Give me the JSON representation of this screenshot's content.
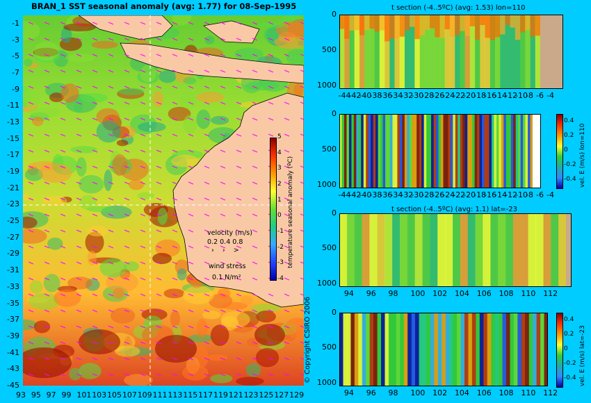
{
  "chart_data": [
    {
      "type": "heatmap",
      "title": "BRAN_1  SST seasonal anomaly (avg: 1.77) for 08-Sep-1995",
      "x_ticks": [
        "93",
        "95",
        "97",
        "99",
        "101",
        "103",
        "105",
        "107",
        "109",
        "111",
        "113",
        "115",
        "117",
        "119",
        "121",
        "123",
        "125",
        "127",
        "129"
      ],
      "y_ticks": [
        "-1",
        "-3",
        "-5",
        "-7",
        "-9",
        "-11",
        "-13",
        "-15",
        "-17",
        "-19",
        "-21",
        "-23",
        "-25",
        "-27",
        "-29",
        "-31",
        "-33",
        "-35",
        "-37",
        "-39",
        "-41",
        "-43",
        "-45"
      ],
      "xlim": [
        93,
        130
      ],
      "ylim": [
        -45,
        0
      ],
      "colorbar": {
        "label": "temperature seasonal anomaly (ºC)",
        "ticks": [
          "5",
          "4",
          "3",
          "2",
          "1",
          "0",
          "-1",
          "-2",
          "-3",
          "-4"
        ],
        "range": [
          -4,
          5
        ]
      },
      "legend": {
        "velocity_label": "velocity (m/s)",
        "velocity_scale": "0.2 0.4 0.8",
        "wind_label": "wind stress",
        "wind_scale": "0.1 N/m²"
      },
      "crosshair": {
        "lon": 110,
        "lat": -23
      }
    },
    {
      "type": "heatmap",
      "title": "t section (-4..5ºC) (avg: 1.53) lon=110",
      "x_ticks": [
        "-44",
        "-42",
        "-40",
        "-38",
        "-36",
        "-34",
        "-32",
        "-30",
        "-28",
        "-26",
        "-24",
        "-22",
        "-20",
        "-18",
        "-16",
        "-14",
        "-12",
        "-10",
        "-8",
        "-6",
        "-4"
      ],
      "y_ticks": [
        "0",
        "500",
        "1000"
      ],
      "xlim": [
        -45,
        -2
      ],
      "ylim": [
        1050,
        0
      ]
    },
    {
      "type": "heatmap",
      "title": "",
      "x_ticks": [
        "-44",
        "-42",
        "-40",
        "-38",
        "-36",
        "-34",
        "-32",
        "-30",
        "-28",
        "-26",
        "-24",
        "-22",
        "-20",
        "-18",
        "-16",
        "-14",
        "-12",
        "-10",
        "-8",
        "-6",
        "-4"
      ],
      "y_ticks": [
        "0",
        "500",
        "1000"
      ],
      "xlim": [
        -45,
        -2
      ],
      "ylim": [
        1050,
        0
      ],
      "colorbar": {
        "label": "vel. E (m/s) lon=110",
        "ticks": [
          "0.4",
          "0.2",
          "0",
          "-0.2",
          "-0.4"
        ],
        "range": [
          -0.5,
          0.5
        ]
      }
    },
    {
      "type": "heatmap",
      "title": "t section (-4..5ºC) (avg: 1.1) lat=-23",
      "x_ticks": [
        "94",
        "96",
        "98",
        "100",
        "102",
        "104",
        "106",
        "108",
        "110",
        "112"
      ],
      "y_ticks": [
        "0",
        "500",
        "1000"
      ],
      "xlim": [
        93,
        114
      ],
      "ylim": [
        1050,
        0
      ]
    },
    {
      "type": "heatmap",
      "title": "",
      "x_ticks": [
        "94",
        "96",
        "98",
        "100",
        "102",
        "104",
        "106",
        "108",
        "110",
        "112"
      ],
      "y_ticks": [
        "0",
        "500",
        "1000"
      ],
      "xlim": [
        93,
        114
      ],
      "ylim": [
        1050,
        0
      ],
      "colorbar": {
        "label": "vel. E (m/s) lat=-23",
        "ticks": [
          "0.4",
          "0.2",
          "0",
          "-0.2",
          "-0.4"
        ],
        "range": [
          -0.5,
          0.5
        ]
      }
    }
  ],
  "copyright": "© Copyright CSIRO 2006",
  "colors": {
    "background": "#00ccff",
    "land": "#f9c9a6",
    "section_land": "#c9a98a",
    "arrow": "#ff00ff"
  }
}
